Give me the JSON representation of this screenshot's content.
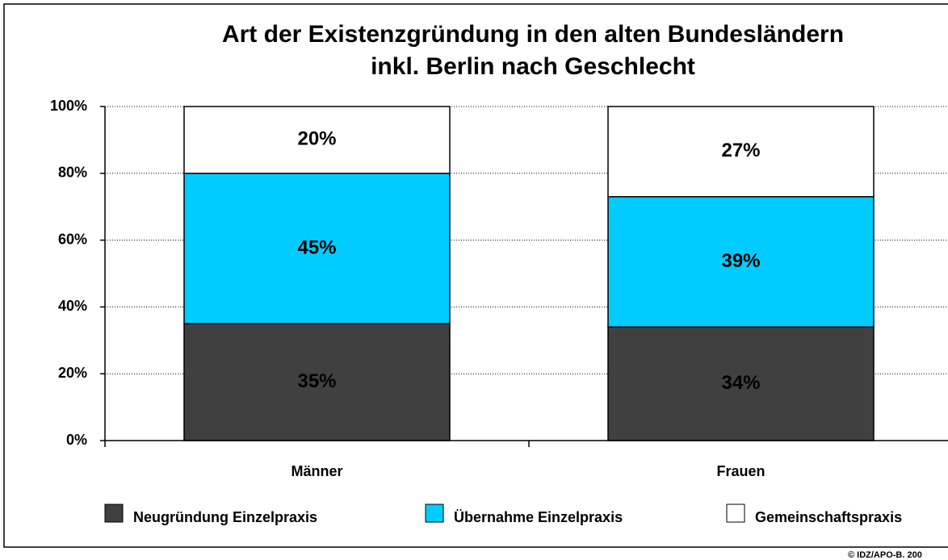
{
  "chart_data": {
    "type": "stacked_bar",
    "title": [
      "Art der Existenzgründung in den alten Bundesländern",
      "inkl. Berlin nach Geschlecht"
    ],
    "categories": [
      "Männer",
      "Frauen"
    ],
    "series": [
      {
        "name": "Neugründung Einzelpraxis",
        "color": "#404040",
        "values": [
          35,
          34
        ],
        "value_labels": [
          "35%",
          "34%"
        ]
      },
      {
        "name": "Übernahme Einzelpraxis",
        "color": "#00ccff",
        "values": [
          45,
          39
        ],
        "value_labels": [
          "45%",
          "39%"
        ]
      },
      {
        "name": "Gemeinschaftspraxis",
        "color": "#ffffff",
        "values": [
          20,
          27
        ],
        "value_labels": [
          "20%",
          "27%"
        ]
      }
    ],
    "ylim": [
      0,
      100
    ],
    "yticks": [
      {
        "value": 0,
        "label": "0%"
      },
      {
        "value": 20,
        "label": "20%"
      },
      {
        "value": 40,
        "label": "40%"
      },
      {
        "value": 60,
        "label": "60%"
      },
      {
        "value": 80,
        "label": "80%"
      },
      {
        "value": 100,
        "label": "100%"
      }
    ],
    "grid": true,
    "legend": "bottom",
    "annotation": "© IDZ/APO-B. 200"
  }
}
